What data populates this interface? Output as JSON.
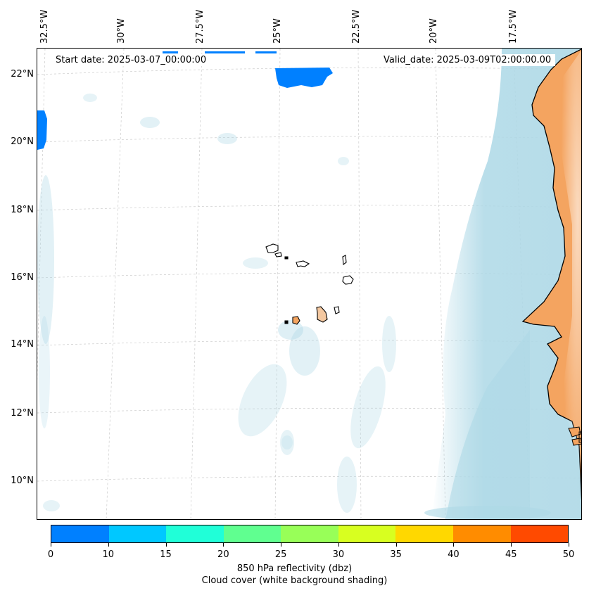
{
  "map": {
    "start_date": "Start date: 2025-03-07_00:00:00",
    "valid_date": "Valid_date: 2025-03-09T02:00:00.00",
    "lon_labels": [
      "32.5°W",
      "30°W",
      "27.5°W",
      "25°W",
      "22.5°W",
      "20°W",
      "17.5°W"
    ],
    "lat_labels": [
      "22°N",
      "20°N",
      "18°N",
      "16°N",
      "14°N",
      "12°N",
      "10°N"
    ],
    "land_color": "#f4a460",
    "cloud_color": "#add8e6",
    "reflectivity_color": "#0080ff"
  },
  "colorbar": {
    "ticks": [
      "0",
      "10",
      "15",
      "20",
      "25",
      "30",
      "35",
      "40",
      "45",
      "50"
    ],
    "colors": [
      "#0080ff",
      "#00c8ff",
      "#20ffd8",
      "#60ff90",
      "#98ff58",
      "#d8ff20",
      "#ffd800",
      "#ff8c00",
      "#ff4a00"
    ],
    "label": "850 hPa reflectivity (dbz)",
    "sublabel": "Cloud cover (white background shading)"
  }
}
